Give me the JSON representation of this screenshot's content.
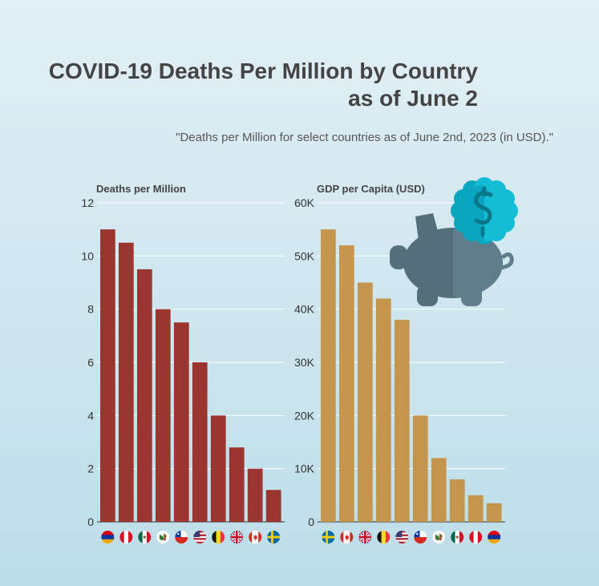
{
  "title": {
    "line1": "COVID-19 Deaths Per Million by Country",
    "line2": "as of June 2"
  },
  "subtitle": "\"Deaths per Million for select countries as of June 2nd, 2023 (in USD).\"",
  "colors": {
    "deaths_bar": "#9b3530",
    "gdp_bar": "#c4954c",
    "grid": "#ffffff",
    "axis_text": "#333333",
    "icon_dark": "#546e7a",
    "icon_light": "#607d8b",
    "coin_dark": "#0aa5be",
    "coin_light": "#14bcd6"
  },
  "icons": [
    "piggy-bank-icon",
    "coin-icon"
  ],
  "chart_data": [
    {
      "type": "bar",
      "ylabel": "Deaths per Million",
      "ylim": [
        0,
        12
      ],
      "yticks": [
        0,
        2,
        4,
        6,
        8,
        10,
        12
      ],
      "ytick_labels": [
        "0",
        "2",
        "4",
        "6",
        "8",
        "10",
        "12"
      ],
      "grid": true,
      "categories": [
        "Armenia",
        "Peru",
        "Mexico",
        "Brazil",
        "Chile",
        "United States",
        "Belgium",
        "United Kingdom",
        "Canada",
        "Sweden"
      ],
      "values": [
        11,
        10.5,
        9.5,
        8,
        7.5,
        6,
        4,
        2.8,
        2,
        1.2
      ]
    },
    {
      "type": "bar",
      "ylabel": "GDP per Capita (USD)",
      "ylim": [
        0,
        60000
      ],
      "yticks": [
        0,
        10000,
        20000,
        30000,
        40000,
        50000,
        60000
      ],
      "ytick_labels": [
        "0",
        "10K",
        "20K",
        "30K",
        "40K",
        "50K",
        "60K"
      ],
      "grid": true,
      "categories": [
        "Sweden",
        "Canada",
        "United Kingdom",
        "Belgium",
        "United States",
        "Chile",
        "Brazil",
        "Mexico",
        "Peru",
        "Armenia"
      ],
      "values": [
        55000,
        52000,
        45000,
        42000,
        38000,
        20000,
        12000,
        8000,
        5000,
        3500
      ]
    }
  ]
}
